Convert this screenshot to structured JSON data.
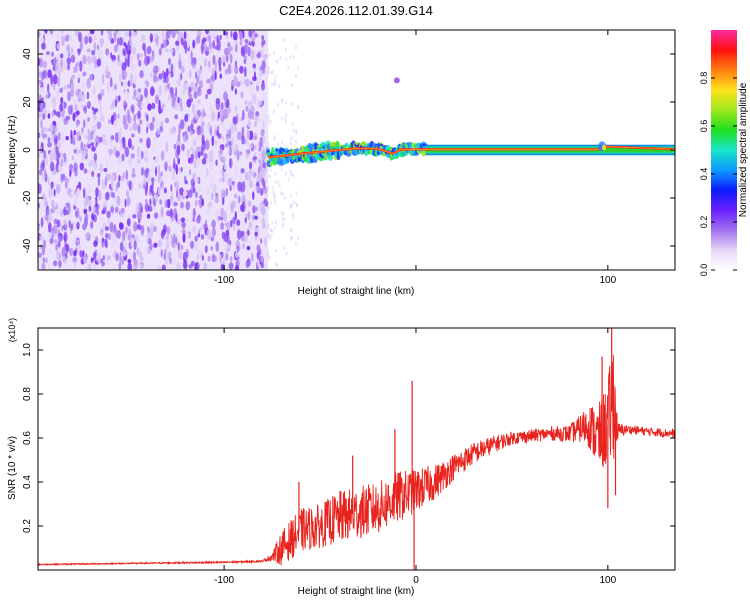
{
  "title": "C2E4.2026.112.01.39.G14",
  "chart_data": [
    {
      "type": "heatmap",
      "xlabel": "Height of straight line (km)",
      "ylabel": "Frequency (Hz)",
      "xlim": [
        -197,
        135
      ],
      "ylim": [
        -50,
        50
      ],
      "xticks": [
        -100,
        0,
        100
      ],
      "xtick_labels": [
        "-100",
        "",
        "100"
      ],
      "yticks": [
        -40,
        -20,
        0,
        20,
        40
      ],
      "ytick_labels": [
        "-40",
        "-20",
        "0",
        "20",
        "40"
      ],
      "noise_region_x": [
        -197,
        -77
      ],
      "signal_track": {
        "x": [
          -77,
          -70,
          -60,
          -50,
          -40,
          -30,
          -20,
          -12,
          -8,
          0,
          5,
          20,
          90,
          95,
          98,
          135
        ],
        "y": [
          -3,
          -2.5,
          -1.5,
          -0.8,
          0,
          0.7,
          0.5,
          -1.5,
          0.2,
          0.3,
          0.3,
          0.3,
          0.3,
          0.3,
          1.5,
          0.3
        ]
      },
      "isolated_feature": {
        "x": -10,
        "y": 29
      },
      "colorbar": {
        "label": "Normalized spectral amplitude",
        "range": [
          0,
          1
        ],
        "ticks": [
          0.0,
          0.2,
          0.4,
          0.6,
          0.8
        ],
        "tick_labels": [
          "0.0",
          "0.2",
          "0.4",
          "0.6",
          "0.8"
        ],
        "colors": [
          "#ffffff",
          "#e6d6f7",
          "#9f6fee",
          "#6a1fff",
          "#0b1cff",
          "#0e9bff",
          "#18e6c9",
          "#21e021",
          "#9ee81b",
          "#ffe01a",
          "#ff7f10",
          "#ff1010",
          "#ff2aa0"
        ]
      }
    },
    {
      "type": "line",
      "xlabel": "Height of straight line (km)",
      "ylabel": "SNR (10 * v/v)",
      "y_scale_label": "(x10⁴)",
      "xlim": [
        -197,
        135
      ],
      "ylim": [
        0,
        1.1
      ],
      "xticks": [
        -100,
        0,
        100
      ],
      "xtick_labels": [
        "-100",
        "0",
        "100"
      ],
      "yticks": [
        0.2,
        0.4,
        0.6,
        0.8,
        1.0
      ],
      "ytick_labels": [
        "0.2",
        "0.4",
        "0.6",
        "0.8",
        "1.0"
      ],
      "color": "#e8221d",
      "series": [
        {
          "name": "SNR",
          "x": [
            -197,
            -150,
            -100,
            -80,
            -75,
            -70,
            -60,
            -50,
            -40,
            -30,
            -20,
            -10,
            0,
            10,
            20,
            30,
            40,
            50,
            60,
            70,
            80,
            85,
            90,
            95,
            100,
            103,
            105,
            110,
            120,
            135
          ],
          "y": [
            0.025,
            0.03,
            0.035,
            0.04,
            0.06,
            0.1,
            0.18,
            0.2,
            0.24,
            0.26,
            0.28,
            0.33,
            0.36,
            0.4,
            0.47,
            0.53,
            0.57,
            0.6,
            0.61,
            0.62,
            0.62,
            0.64,
            0.66,
            0.6,
            0.66,
            0.8,
            0.63,
            0.64,
            0.63,
            0.62
          ],
          "spread": [
            0.003,
            0.003,
            0.004,
            0.004,
            0.02,
            0.08,
            0.1,
            0.1,
            0.12,
            0.12,
            0.12,
            0.12,
            0.1,
            0.08,
            0.06,
            0.05,
            0.04,
            0.03,
            0.03,
            0.03,
            0.04,
            0.06,
            0.1,
            0.15,
            0.2,
            0.3,
            0.04,
            0.02,
            0.02,
            0.02
          ]
        }
      ],
      "spikes": [
        {
          "x": -61,
          "y": 0.4
        },
        {
          "x": -33,
          "y": 0.52
        },
        {
          "x": -11,
          "y": 0.64
        },
        {
          "x": -2,
          "y": 0.86
        },
        {
          "x": -1,
          "y": 0.0
        },
        {
          "x": 97,
          "y": 0.97
        },
        {
          "x": 100,
          "y": 0.28
        },
        {
          "x": 102,
          "y": 1.12
        },
        {
          "x": 104,
          "y": 0.34
        }
      ]
    }
  ]
}
